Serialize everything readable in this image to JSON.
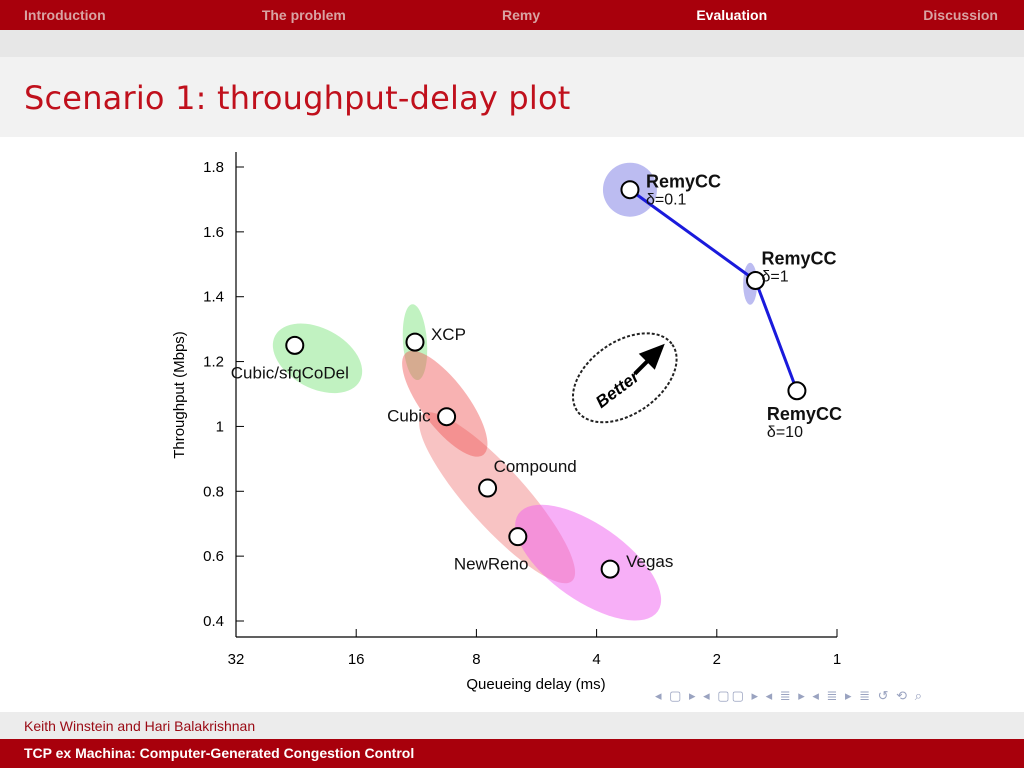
{
  "nav": {
    "items": [
      "Introduction",
      "The problem",
      "Remy",
      "Evaluation",
      "Discussion"
    ],
    "active": "Evaluation"
  },
  "slide": {
    "title": "Scenario 1: throughput-delay plot"
  },
  "footer": {
    "authors": "Keith Winstein and Hari Balakrishnan",
    "talk_title": "TCP ex Machina: Computer-Generated Congestion Control"
  },
  "navigation_symbols": "◂ ▢ ▸ ◂ ▢▢ ▸ ◂ ≣ ▸ ◂ ≣ ▸ ≣ ↺ ⟲ ⌕",
  "chart_data": {
    "type": "scatter",
    "xlabel": "Queueing delay (ms)",
    "ylabel": "Throughput (Mbps)",
    "x_scale": "log2",
    "x_reversed": true,
    "xlim": [
      32,
      1
    ],
    "ylim": [
      0.4,
      1.8
    ],
    "x_ticks": [
      32,
      16,
      8,
      4,
      2,
      1
    ],
    "x_tick_labels": [
      "32",
      "16",
      "8",
      "4",
      "2",
      "1"
    ],
    "y_ticks": [
      0.4,
      0.6,
      0.8,
      1.0,
      1.2,
      1.4,
      1.6,
      1.8
    ],
    "y_tick_labels": [
      "0.4",
      "0.6",
      "0.8",
      "1",
      "1.2",
      "1.4",
      "1.6",
      "1.8"
    ],
    "grid": false,
    "points": [
      {
        "label": "Cubic/sfqCoDel",
        "x": 22.8,
        "y": 1.25,
        "label_pos": "below-left"
      },
      {
        "label": "XCP",
        "x": 11.4,
        "y": 1.26,
        "label_pos": "right"
      },
      {
        "label": "Cubic",
        "x": 9.5,
        "y": 1.03,
        "label_pos": "left"
      },
      {
        "label": "Compound",
        "x": 7.5,
        "y": 0.81,
        "label_pos": "above-right"
      },
      {
        "label": "NewReno",
        "x": 6.3,
        "y": 0.66,
        "label_pos": "below-left"
      },
      {
        "label": "Vegas",
        "x": 3.7,
        "y": 0.56,
        "label_pos": "right"
      },
      {
        "label": "RemyCC",
        "sublabel": "δ=0.1",
        "x": 3.3,
        "y": 1.73,
        "label_pos": "right"
      },
      {
        "label": "RemyCC",
        "sublabel": "δ=1",
        "x": 1.6,
        "y": 1.45,
        "label_pos": "above-right"
      },
      {
        "label": "RemyCC",
        "sublabel": "δ=10",
        "x": 1.26,
        "y": 1.11,
        "label_pos": "below"
      }
    ],
    "remy_line": [
      6,
      7,
      8
    ],
    "ellipses": [
      {
        "cx": 20.0,
        "cy": 1.21,
        "rx": 48,
        "ry": 30,
        "angle": 28,
        "color": "#8ee88e",
        "opacity": 0.55
      },
      {
        "cx": 11.4,
        "cy": 1.26,
        "rx": 12,
        "ry": 38,
        "angle": -4,
        "color": "#8ee88e",
        "opacity": 0.55
      },
      {
        "cx": 7.1,
        "cy": 0.78,
        "rx": 112,
        "ry": 29,
        "angle": 48,
        "color": "#f07a7a",
        "opacity": 0.45
      },
      {
        "cx": 9.6,
        "cy": 1.07,
        "rx": 64,
        "ry": 23,
        "angle": 53,
        "color": "#f05555",
        "opacity": 0.45
      },
      {
        "cx": 4.2,
        "cy": 0.58,
        "rx": 85,
        "ry": 38,
        "angle": 35,
        "color": "#f060f0",
        "opacity": 0.5
      },
      {
        "cx": 3.3,
        "cy": 1.73,
        "rx": 27,
        "ry": 27,
        "angle": 0,
        "color": "#8f8fe8",
        "opacity": 0.6
      },
      {
        "cx": 1.65,
        "cy": 1.44,
        "rx": 7,
        "ry": 21,
        "angle": 0,
        "color": "#8f8fe8",
        "opacity": 0.6
      }
    ],
    "annotation": {
      "text": "Better",
      "x": 3.4,
      "y": 1.15
    }
  }
}
